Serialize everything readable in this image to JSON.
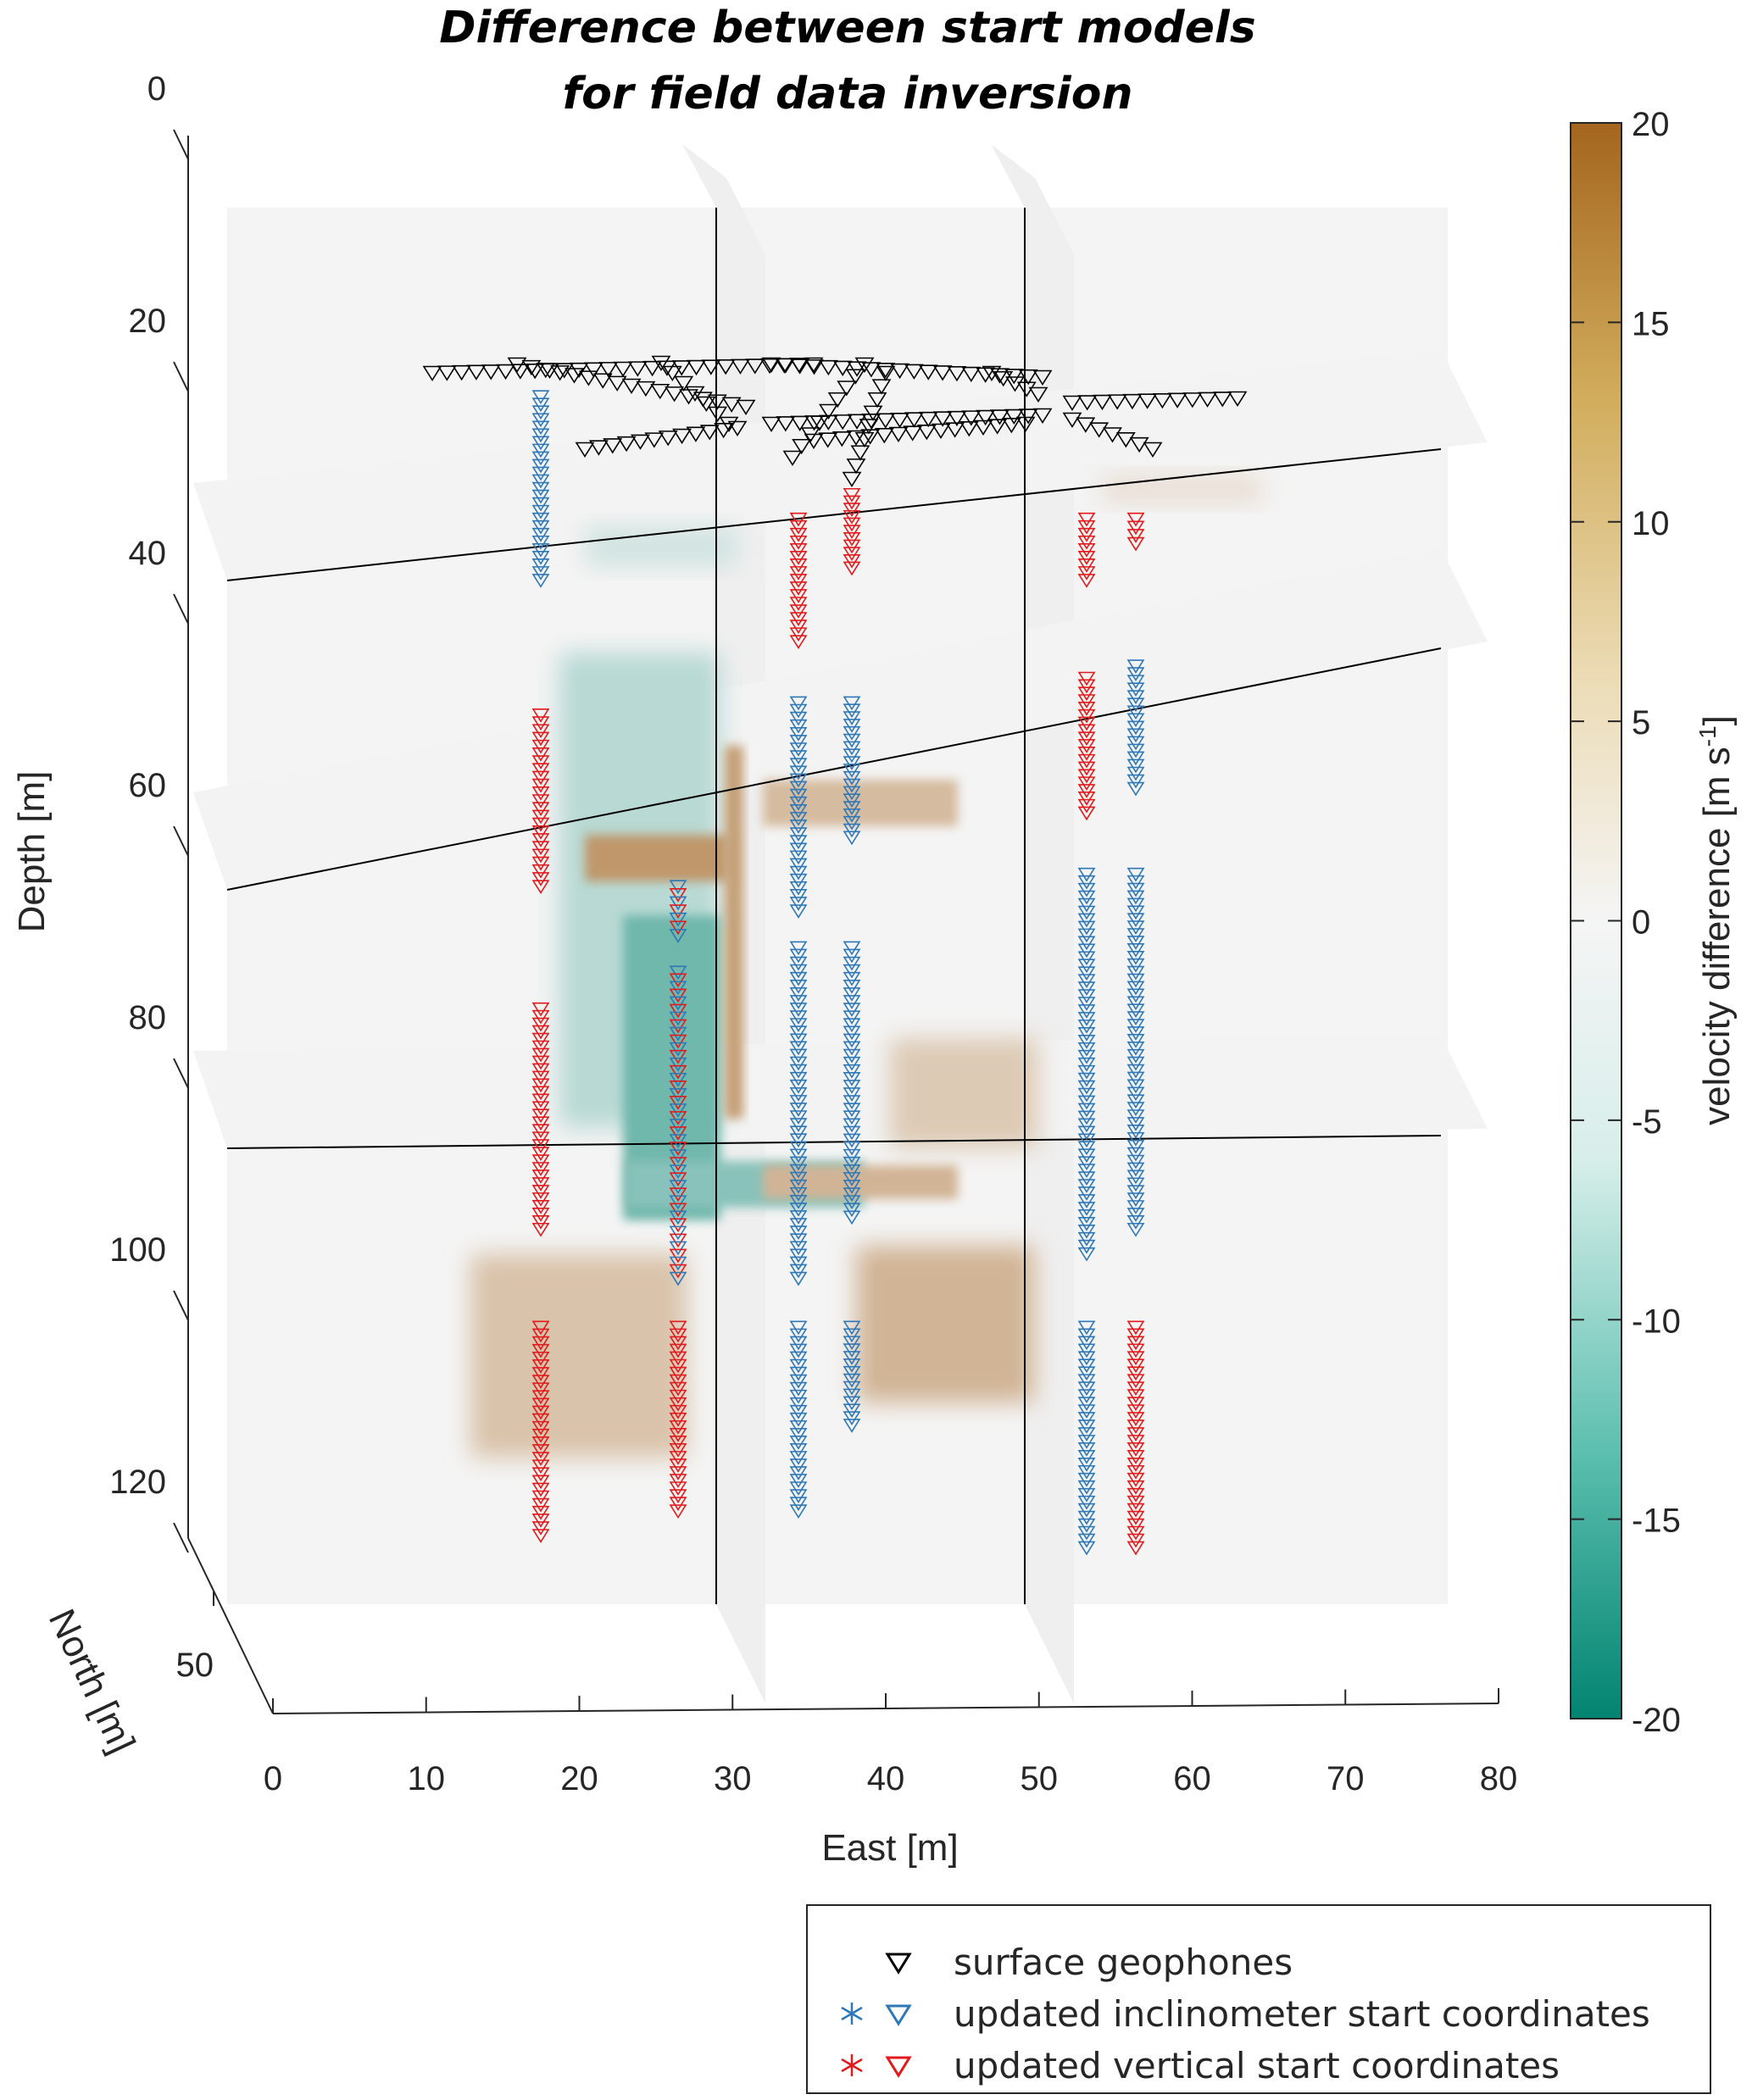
{
  "chart_data": {
    "type": "heatmap",
    "title": [
      "Difference between start models",
      "for field data inversion"
    ],
    "xlabel": "East [m]",
    "ylabel": "North [m]",
    "zlabel": "Depth [m]",
    "xlim": [
      0,
      80
    ],
    "ylim_north": [
      40,
      60
    ],
    "zlim_depth": [
      0,
      120
    ],
    "zdir": "reverse",
    "x_ticks": [
      "0",
      "10",
      "20",
      "30",
      "40",
      "50",
      "60",
      "70",
      "80"
    ],
    "y_ticks": [
      "50"
    ],
    "z_ticks": [
      "0",
      "20",
      "40",
      "60",
      "80",
      "100",
      "120"
    ],
    "colorbar": {
      "label": "velocity difference [m s",
      "label_sup": "-1",
      "label_close": "]",
      "limits": [
        -20,
        20
      ],
      "ticks": [
        "20",
        "15",
        "10",
        "5",
        "0",
        "-5",
        "-10",
        "-15",
        "-20"
      ],
      "colors": [
        "#028471",
        "#5ec0b0",
        "#d7eeea",
        "#f5f5f5",
        "#ecdcb6",
        "#d1ac5b",
        "#a4651f"
      ]
    },
    "slices": {
      "depth_planes_m": [
        35,
        62,
        90
      ],
      "east_planes_m": [
        30,
        50
      ]
    },
    "anomalies": [
      {
        "depth_range_m": [
          95,
          118
        ],
        "east_range_m": [
          13,
          30
        ],
        "value": 6
      },
      {
        "depth_range_m": [
          95,
          118
        ],
        "east_range_m": [
          39,
          50
        ],
        "value": 8
      },
      {
        "depth_range_m": [
          65,
          95
        ],
        "east_range_m": [
          23,
          30
        ],
        "value": -9
      },
      {
        "depth_range_m": [
          60,
          66
        ],
        "east_range_m": [
          18,
          32
        ],
        "value": 12
      },
      {
        "depth_range_m": [
          88,
          96
        ],
        "east_range_m": [
          25,
          45
        ],
        "value": -6
      },
      {
        "depth_range_m": [
          75,
          92
        ],
        "east_range_m": [
          40,
          50
        ],
        "value": 5
      }
    ],
    "boreholes": [
      {
        "east": 17.5,
        "intervals": [
          [
            22,
            37,
            "inclinometer"
          ],
          [
            48,
            62,
            "vertical"
          ],
          [
            72,
            90,
            "vertical"
          ],
          [
            98,
            115,
            "vertical"
          ]
        ]
      },
      {
        "east": 26.5,
        "intervals": [
          [
            62,
            66,
            "mixed"
          ],
          [
            69,
            94,
            "mixed"
          ],
          [
            98,
            113,
            "vertical"
          ]
        ]
      },
      {
        "east": 34.5,
        "intervals": [
          [
            32,
            42,
            "vertical"
          ],
          [
            47,
            64,
            "inclinometer"
          ],
          [
            67,
            94,
            "inclinometer"
          ],
          [
            98,
            113,
            "inclinometer"
          ]
        ]
      },
      {
        "east": 37.8,
        "intervals": [
          [
            30,
            36,
            "vertical"
          ],
          [
            47,
            58,
            "inclinometer"
          ],
          [
            67,
            89,
            "inclinometer"
          ],
          [
            98,
            106,
            "inclinometer"
          ]
        ]
      },
      {
        "east": 53.2,
        "intervals": [
          [
            32,
            37,
            "vertical"
          ],
          [
            45,
            56,
            "vertical"
          ],
          [
            61,
            92,
            "inclinometer"
          ],
          [
            98,
            116,
            "inclinometer"
          ]
        ]
      },
      {
        "east": 56.5,
        "intervals": [
          [
            32,
            34,
            "vertical"
          ],
          [
            44,
            54,
            "inclinometer"
          ],
          [
            61,
            90,
            "inclinometer"
          ],
          [
            98,
            116,
            "vertical"
          ]
        ]
      }
    ],
    "legend": {
      "placement": "bottom-right",
      "entries": [
        {
          "label": "surface geophones",
          "marker": "triangle-down",
          "color": "#000000",
          "star": false
        },
        {
          "label": "updated inclinometer start coordinates",
          "marker": "triangle-down",
          "color": "#2e78b8",
          "star": true
        },
        {
          "label": "updated vertical start coordinates",
          "marker": "triangle-down",
          "color": "#e31a1c",
          "star": true
        }
      ]
    },
    "grid": false
  }
}
